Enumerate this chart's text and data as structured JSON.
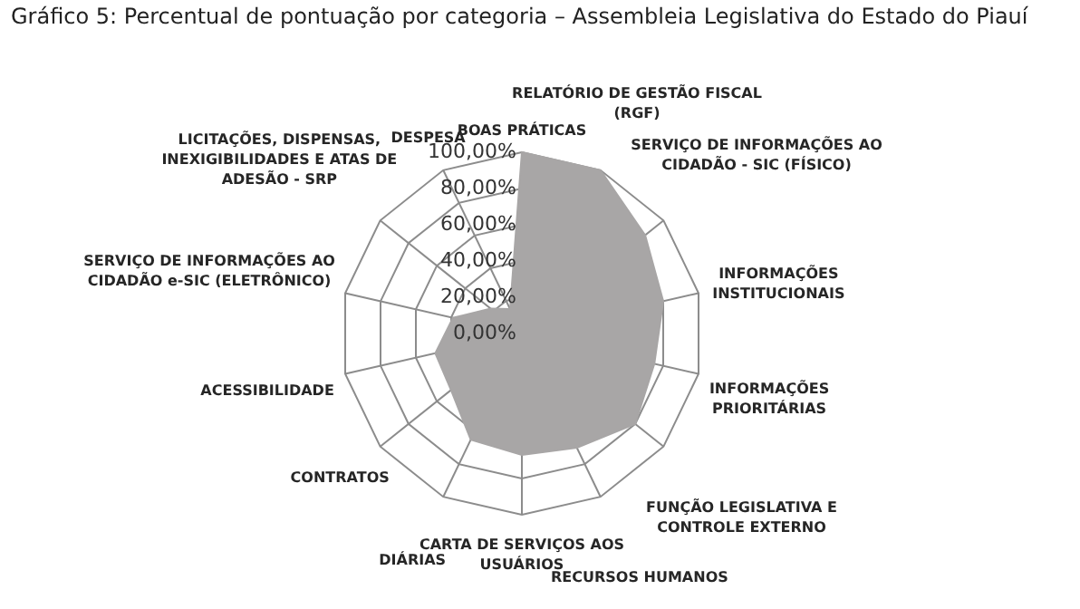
{
  "chart_data": {
    "type": "radar",
    "title": "Gráfico 5: Percentual de pontuação por categoria – Assembleia Legislativa do Estado do Piauí",
    "categories": [
      "BOAS PRÁTICAS",
      "RELATÓRIO DE GESTÃO FISCAL (RGF)",
      "SERVIÇO DE INFORMAÇÕES AO CIDADÃO - SIC (FÍSICO)",
      "INFORMAÇÕES INSTITUCIONAIS",
      "INFORMAÇÕES PRIORITÁRIAS",
      "FUNÇÃO LEGISLATIVA E CONTROLE EXTERNO",
      "RECURSOS HUMANOS",
      "CARTA DE SERVIÇOS AOS USUÁRIOS",
      "DIÁRIAS",
      "CONTRATOS",
      "ACESSIBILIDADE",
      "SERVIÇO DE INFORMAÇÕES AO CIDADÃO e-SIC (ELETRÔNICO)",
      "LICITAÇÕES, DISPENSAS, INEXIGIBILIDADES E ATAS DE ADESÃO - SRP",
      "DESPESA"
    ],
    "series": [
      {
        "color": "#a8a6a6",
        "values": [
          100,
          100,
          87,
          80,
          75,
          80,
          70,
          67,
          65,
          50,
          49,
          39,
          22,
          15
        ]
      }
    ],
    "ylim": [
      0,
      100
    ],
    "yticks": [
      {
        "value": 0,
        "label": "0,00%"
      },
      {
        "value": 20,
        "label": "20,00%"
      },
      {
        "value": 40,
        "label": "40,00%"
      },
      {
        "value": 60,
        "label": "60,00%"
      },
      {
        "value": 80,
        "label": "80,00%"
      },
      {
        "value": 100,
        "label": "100,00%"
      }
    ],
    "grid": true
  }
}
